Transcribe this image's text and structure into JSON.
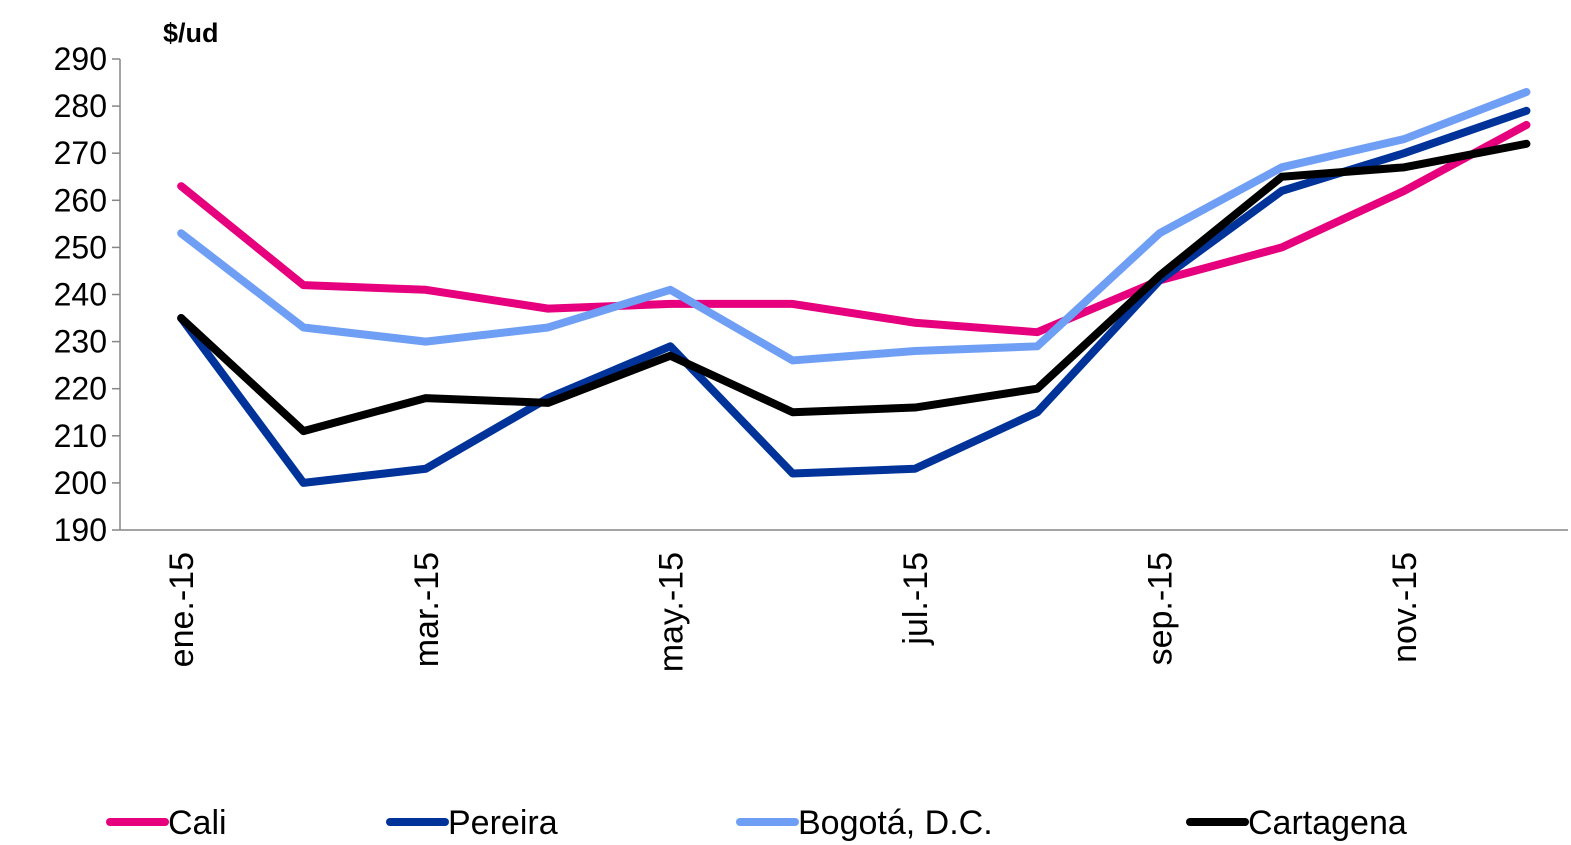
{
  "chart_data": {
    "type": "line",
    "y_label": "$/ud",
    "categories": [
      "ene.-15",
      null,
      "mar.-15",
      null,
      "may.-15",
      null,
      "jul.-15",
      null,
      "sep.-15",
      null,
      "nov.-15",
      null
    ],
    "series": [
      {
        "name": "Cali",
        "color": "#e6007e",
        "values": [
          263,
          242,
          241,
          237,
          238,
          238,
          234,
          232,
          243,
          250,
          262,
          276
        ]
      },
      {
        "name": "Pereira",
        "color": "#003399",
        "values": [
          235,
          200,
          203,
          218,
          229,
          202,
          203,
          215,
          243,
          262,
          270,
          279
        ]
      },
      {
        "name": "Bogotá, D.C.",
        "color": "#6f9ff5",
        "values": [
          253,
          233,
          230,
          233,
          241,
          226,
          228,
          229,
          253,
          267,
          273,
          283
        ]
      },
      {
        "name": "Cartagena",
        "color": "#000000",
        "values": [
          235,
          211,
          218,
          217,
          227,
          215,
          216,
          220,
          244,
          265,
          267,
          272
        ]
      }
    ],
    "ylim": [
      190,
      290
    ],
    "yticks": [
      190,
      200,
      210,
      220,
      230,
      240,
      250,
      260,
      270,
      280,
      290
    ],
    "legend": "bottom"
  }
}
